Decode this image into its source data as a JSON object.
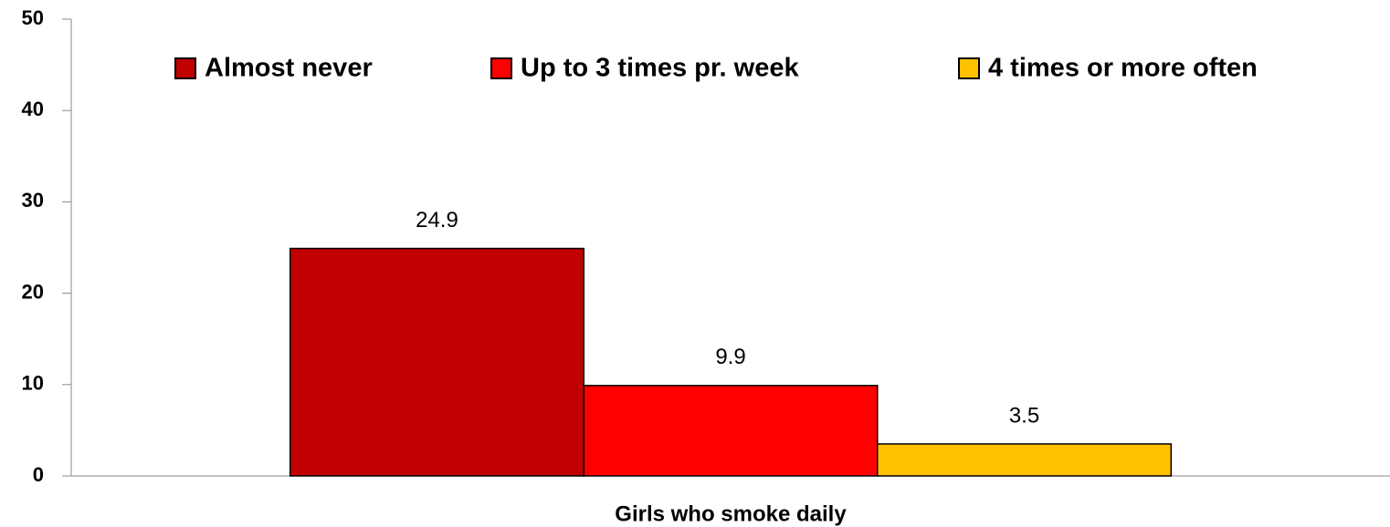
{
  "chart_data": {
    "type": "bar",
    "categories": [
      "Girls who smoke daily"
    ],
    "series": [
      {
        "name": "Almost never",
        "color": "#c00000",
        "values": [
          24.9
        ]
      },
      {
        "name": "Up to 3 times pr. week",
        "color": "#ff0000",
        "values": [
          9.9
        ]
      },
      {
        "name": "4 times or more often",
        "color": "#ffc000",
        "values": [
          3.5
        ]
      }
    ],
    "ylim": [
      0,
      50
    ],
    "yticks": [
      0,
      10,
      20,
      30,
      40,
      50
    ],
    "legend": "top",
    "data_labels": true
  }
}
